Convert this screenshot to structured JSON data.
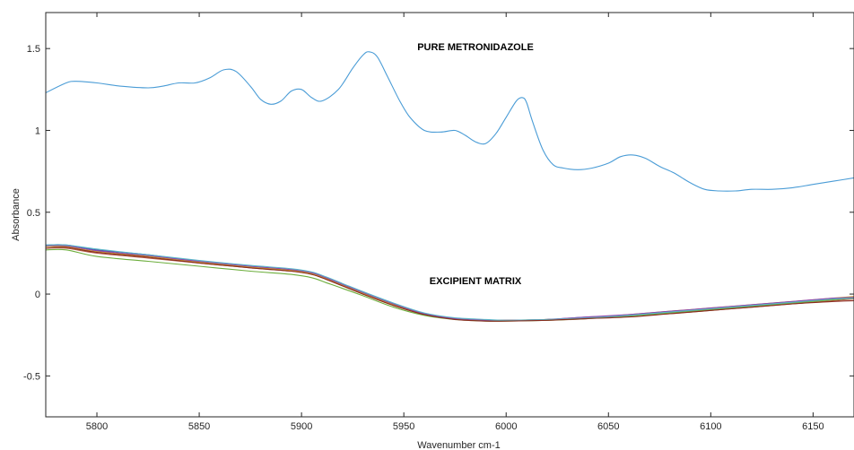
{
  "chart_data": {
    "type": "line",
    "xlabel": "Wavenumber cm-1",
    "ylabel": "Absorbance",
    "xlim": [
      5775,
      6170
    ],
    "ylim": [
      -0.75,
      1.72
    ],
    "xticks": [
      5800,
      5850,
      5900,
      5950,
      6000,
      6050,
      6100,
      6150
    ],
    "yticks": [
      -0.5,
      0,
      0.5,
      1,
      1.5
    ],
    "ytick_labels": [
      "-0.5",
      "0",
      "0.5",
      "1",
      "1.5"
    ],
    "grid": false,
    "annotations": [
      {
        "text": "PURE METRONIDAZOLE",
        "x": 5985,
        "y": 1.49
      },
      {
        "text": "EXCIPIENT MATRIX",
        "x": 5985,
        "y": 0.06
      }
    ],
    "series": [
      {
        "color": "#4a9cd6",
        "x": [
          5775,
          5785,
          5790,
          5800,
          5812,
          5825,
          5832,
          5840,
          5848,
          5855,
          5862,
          5868,
          5875,
          5880,
          5885,
          5890,
          5895,
          5900,
          5905,
          5910,
          5918,
          5925,
          5930,
          5933,
          5937,
          5942,
          5948,
          5953,
          5960,
          5968,
          5975,
          5980,
          5985,
          5990,
          5995,
          6000,
          6005,
          6008,
          6010,
          6013,
          6018,
          6023,
          6028,
          6035,
          6042,
          6050,
          6056,
          6062,
          6068,
          6075,
          6082,
          6090,
          6097,
          6104,
          6112,
          6120,
          6130,
          6140,
          6150,
          6160,
          6170
        ],
        "y": [
          1.23,
          1.29,
          1.3,
          1.29,
          1.27,
          1.26,
          1.27,
          1.29,
          1.29,
          1.32,
          1.37,
          1.36,
          1.27,
          1.19,
          1.16,
          1.18,
          1.24,
          1.25,
          1.2,
          1.18,
          1.25,
          1.38,
          1.46,
          1.48,
          1.45,
          1.33,
          1.18,
          1.08,
          1.0,
          0.99,
          1.0,
          0.97,
          0.93,
          0.92,
          0.98,
          1.08,
          1.18,
          1.2,
          1.17,
          1.05,
          0.88,
          0.79,
          0.77,
          0.76,
          0.77,
          0.8,
          0.84,
          0.85,
          0.83,
          0.78,
          0.74,
          0.68,
          0.64,
          0.63,
          0.63,
          0.64,
          0.64,
          0.65,
          0.67,
          0.69,
          0.71
        ]
      },
      {
        "color": "#3d57a6",
        "x": [
          5775,
          5785,
          5800,
          5825,
          5850,
          5875,
          5895,
          5905,
          5912,
          5920,
          5930,
          5945,
          5960,
          5975,
          5990,
          6000,
          6020,
          6040,
          6060,
          6080,
          6100,
          6120,
          6140,
          6160,
          6170
        ],
        "y": [
          0.3,
          0.3,
          0.27,
          0.24,
          0.2,
          0.17,
          0.15,
          0.13,
          0.1,
          0.06,
          0.01,
          -0.06,
          -0.12,
          -0.15,
          -0.16,
          -0.16,
          -0.155,
          -0.14,
          -0.13,
          -0.11,
          -0.09,
          -0.07,
          -0.05,
          -0.03,
          -0.02
        ]
      },
      {
        "color": "#b5604a",
        "x": [
          5775,
          5785,
          5800,
          5825,
          5850,
          5875,
          5895,
          5905,
          5912,
          5920,
          5930,
          5945,
          5960,
          5975,
          5990,
          6000,
          6020,
          6040,
          6060,
          6080,
          6100,
          6120,
          6140,
          6160,
          6170
        ],
        "y": [
          0.28,
          0.28,
          0.25,
          0.22,
          0.19,
          0.16,
          0.14,
          0.12,
          0.09,
          0.05,
          0.0,
          -0.07,
          -0.12,
          -0.15,
          -0.16,
          -0.16,
          -0.16,
          -0.15,
          -0.13,
          -0.12,
          -0.1,
          -0.08,
          -0.06,
          -0.04,
          -0.03
        ]
      },
      {
        "color": "#c9a227",
        "x": [
          5775,
          5785,
          5800,
          5825,
          5850,
          5875,
          5895,
          5905,
          5912,
          5920,
          5930,
          5945,
          5960,
          5975,
          5990,
          6000,
          6020,
          6040,
          6060,
          6080,
          6100,
          6120,
          6140,
          6160,
          6170
        ],
        "y": [
          0.29,
          0.29,
          0.26,
          0.23,
          0.195,
          0.165,
          0.145,
          0.125,
          0.095,
          0.055,
          0.005,
          -0.065,
          -0.12,
          -0.15,
          -0.16,
          -0.16,
          -0.155,
          -0.145,
          -0.125,
          -0.105,
          -0.085,
          -0.065,
          -0.045,
          -0.025,
          -0.015
        ]
      },
      {
        "color": "#8e44ad",
        "x": [
          5775,
          5785,
          5800,
          5825,
          5850,
          5875,
          5895,
          5905,
          5912,
          5920,
          5930,
          5945,
          5960,
          5975,
          5990,
          6000,
          6020,
          6040,
          6060,
          6080,
          6100,
          6120,
          6140,
          6160,
          6170
        ],
        "y": [
          0.295,
          0.295,
          0.265,
          0.235,
          0.2,
          0.17,
          0.15,
          0.13,
          0.1,
          0.06,
          0.01,
          -0.06,
          -0.12,
          -0.15,
          -0.16,
          -0.16,
          -0.155,
          -0.14,
          -0.125,
          -0.105,
          -0.085,
          -0.065,
          -0.045,
          -0.025,
          -0.02
        ]
      },
      {
        "color": "#6cae3c",
        "x": [
          5775,
          5785,
          5800,
          5825,
          5850,
          5875,
          5895,
          5905,
          5912,
          5920,
          5930,
          5945,
          5960,
          5975,
          5990,
          6000,
          6020,
          6040,
          6060,
          6080,
          6100,
          6120,
          6140,
          6160,
          6170
        ],
        "y": [
          0.27,
          0.27,
          0.23,
          0.2,
          0.17,
          0.14,
          0.12,
          0.1,
          0.07,
          0.035,
          -0.01,
          -0.08,
          -0.13,
          -0.155,
          -0.165,
          -0.165,
          -0.16,
          -0.15,
          -0.135,
          -0.115,
          -0.095,
          -0.075,
          -0.055,
          -0.035,
          -0.025
        ]
      },
      {
        "color": "#5bb5c8",
        "x": [
          5775,
          5785,
          5800,
          5825,
          5850,
          5875,
          5895,
          5905,
          5912,
          5920,
          5930,
          5945,
          5960,
          5975,
          5990,
          6000,
          6020,
          6040,
          6060,
          6080,
          6100,
          6120,
          6140,
          6160,
          6170
        ],
        "y": [
          0.3,
          0.3,
          0.275,
          0.24,
          0.205,
          0.175,
          0.155,
          0.135,
          0.105,
          0.065,
          0.015,
          -0.055,
          -0.115,
          -0.145,
          -0.155,
          -0.16,
          -0.155,
          -0.145,
          -0.13,
          -0.11,
          -0.09,
          -0.07,
          -0.05,
          -0.03,
          -0.025
        ]
      },
      {
        "color": "#8a2a1e",
        "x": [
          5775,
          5785,
          5800,
          5825,
          5850,
          5875,
          5895,
          5905,
          5912,
          5920,
          5930,
          5945,
          5960,
          5975,
          5990,
          6000,
          6020,
          6040,
          6060,
          6080,
          6100,
          6120,
          6140,
          6160,
          6170
        ],
        "y": [
          0.28,
          0.285,
          0.255,
          0.225,
          0.19,
          0.16,
          0.14,
          0.12,
          0.09,
          0.05,
          0.0,
          -0.07,
          -0.125,
          -0.155,
          -0.165,
          -0.165,
          -0.16,
          -0.15,
          -0.14,
          -0.12,
          -0.1,
          -0.08,
          -0.06,
          -0.045,
          -0.04
        ]
      }
    ]
  }
}
